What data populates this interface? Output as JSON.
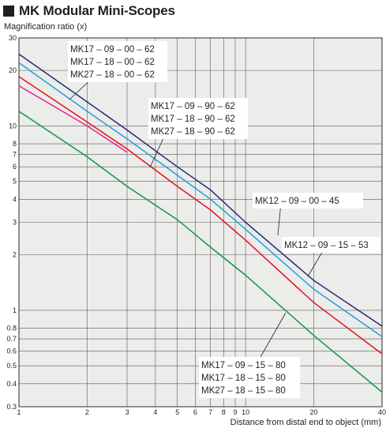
{
  "title": "MK Modular Mini-Scopes",
  "chart_data": {
    "type": "line",
    "title": "MK Modular Mini-Scopes",
    "xlabel": "Distance from distal end to object (mm)",
    "ylabel": "Magnification ratio (x)",
    "x_scale": "log",
    "y_scale": "log",
    "xlim": [
      1,
      40
    ],
    "ylim": [
      0.3,
      30
    ],
    "grid": true,
    "x_ticks": [
      "1",
      "2",
      "3",
      "4",
      "5",
      "6",
      "7",
      "8",
      "9",
      "10",
      "20",
      "40"
    ],
    "x_tick_values": [
      1,
      2,
      3,
      4,
      5,
      6,
      7,
      8,
      9,
      10,
      20,
      40
    ],
    "y_ticks": [
      "0.3",
      "0.4",
      "0.5",
      "0.6",
      "0.7",
      "0.8",
      "1",
      "2",
      "3",
      "4",
      "5",
      "6",
      "7",
      "8",
      "10",
      "20",
      "30"
    ],
    "y_tick_values": [
      0.3,
      0.4,
      0.5,
      0.6,
      0.7,
      0.8,
      1,
      2,
      3,
      4,
      5,
      6,
      7,
      8,
      10,
      20,
      30
    ],
    "series": [
      {
        "color": "#1f2a7a",
        "points": [
          [
            1,
            24.5
          ],
          [
            2,
            13.5
          ],
          [
            3,
            9.5
          ],
          [
            5,
            6.0
          ],
          [
            7,
            4.5
          ],
          [
            10,
            3.0
          ],
          [
            20,
            1.45
          ],
          [
            40,
            0.82
          ]
        ]
      },
      {
        "color": "#1ea0dc",
        "points": [
          [
            1,
            22.0
          ],
          [
            2,
            12.0
          ],
          [
            3,
            8.5
          ],
          [
            5,
            5.4
          ],
          [
            7,
            4.0
          ],
          [
            10,
            2.75
          ],
          [
            20,
            1.3
          ],
          [
            40,
            0.72
          ]
        ]
      },
      {
        "color": "#e0141e",
        "points": [
          [
            1,
            18.5
          ],
          [
            2,
            10.5
          ],
          [
            3,
            7.5
          ],
          [
            5,
            4.7
          ],
          [
            7,
            3.5
          ],
          [
            10,
            2.4
          ],
          [
            20,
            1.1
          ],
          [
            40,
            0.58
          ]
        ]
      },
      {
        "color": "#e2238c",
        "points": [
          [
            1,
            16.5
          ],
          [
            2,
            10.0
          ],
          [
            3,
            7.2
          ]
        ]
      },
      {
        "color": "#0a9a4a",
        "points": [
          [
            1,
            12.0
          ],
          [
            2,
            6.8
          ],
          [
            3,
            4.7
          ],
          [
            5,
            3.1
          ],
          [
            7,
            2.2
          ],
          [
            10,
            1.55
          ],
          [
            20,
            0.73
          ],
          [
            40,
            0.36
          ]
        ]
      }
    ],
    "annotations": [
      {
        "lines": [
          "MK17 – 09 – 00 – 62",
          "MK17 – 18 – 00 – 62",
          "MK27 – 18 – 00 – 62"
        ]
      },
      {
        "lines": [
          "MK17 – 09 – 90 – 62",
          "MK17 – 18 – 90 – 62",
          "MK27 – 18 – 90 – 62"
        ]
      },
      {
        "lines": [
          "MK12 – 09 – 00 – 45"
        ]
      },
      {
        "lines": [
          "MK12 – 09 – 15 – 53"
        ]
      },
      {
        "lines": [
          "MK17 – 09 – 15 – 80",
          "MK17 – 18 – 15 – 80",
          "MK27 – 18 – 15 – 80"
        ]
      }
    ]
  }
}
